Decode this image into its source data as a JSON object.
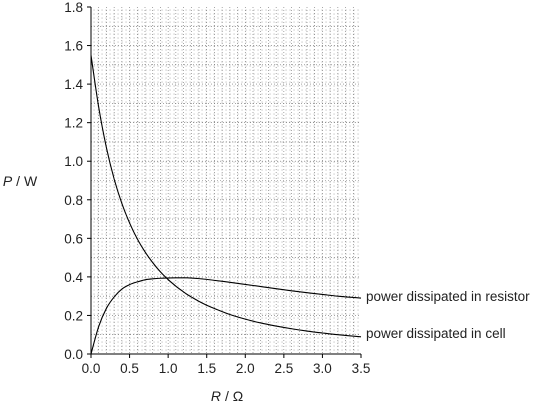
{
  "chart_data": {
    "type": "line",
    "xlabel_var": "R",
    "xlabel_unit": "/ Ω",
    "ylabel_var": "P",
    "ylabel_unit": "/ W",
    "xlim": [
      0,
      3.5
    ],
    "ylim": [
      0,
      1.8
    ],
    "x_ticks": [
      "0.0",
      "0.5",
      "1.0",
      "1.5",
      "2.0",
      "2.5",
      "3.0",
      "3.5"
    ],
    "y_ticks": [
      "0.0",
      "0.2",
      "0.4",
      "0.6",
      "0.8",
      "1.0",
      "1.2",
      "1.4",
      "1.6",
      "1.8"
    ],
    "grid": "fine dotted grid",
    "series": [
      {
        "name": "power dissipated in resistor",
        "x": [
          0,
          0.1,
          0.2,
          0.3,
          0.4,
          0.5,
          0.6,
          0.7,
          0.8,
          0.9,
          1.0,
          1.1,
          1.2,
          1.25,
          1.3,
          1.4,
          1.5,
          1.6,
          1.8,
          2.0,
          2.2,
          2.4,
          2.6,
          2.8,
          3.0,
          3.2,
          3.5
        ],
        "y": [
          0,
          0.143,
          0.237,
          0.296,
          0.337,
          0.36,
          0.374,
          0.385,
          0.39,
          0.393,
          0.394,
          0.395,
          0.395,
          0.395,
          0.394,
          0.391,
          0.387,
          0.382,
          0.372,
          0.361,
          0.35,
          0.339,
          0.328,
          0.318,
          0.309,
          0.3,
          0.29
        ]
      },
      {
        "name": "power dissipated in cell",
        "x": [
          0,
          0.1,
          0.2,
          0.3,
          0.4,
          0.5,
          0.6,
          0.7,
          0.8,
          0.9,
          1.0,
          1.1,
          1.2,
          1.25,
          1.3,
          1.4,
          1.5,
          1.6,
          1.8,
          2.0,
          2.2,
          2.4,
          2.6,
          2.8,
          3.0,
          3.2,
          3.5
        ],
        "y": [
          1.55,
          1.28,
          1.07,
          0.908,
          0.781,
          0.68,
          0.597,
          0.53,
          0.474,
          0.426,
          0.386,
          0.352,
          0.322,
          0.308,
          0.296,
          0.273,
          0.253,
          0.236,
          0.205,
          0.181,
          0.161,
          0.145,
          0.131,
          0.119,
          0.109,
          0.1,
          0.089
        ]
      }
    ]
  }
}
